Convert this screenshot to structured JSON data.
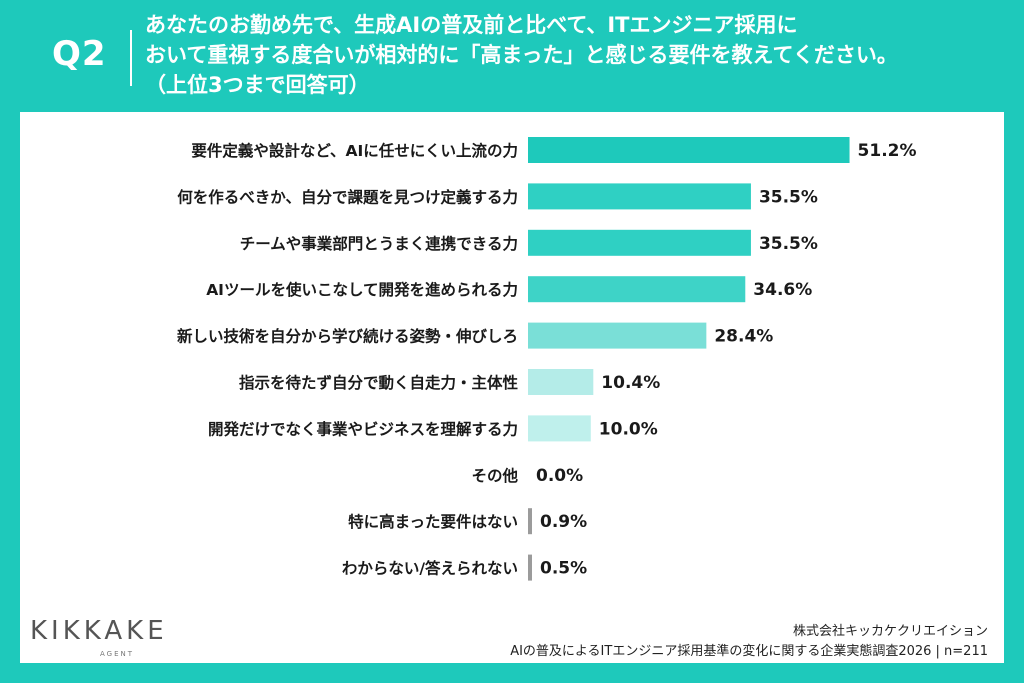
{
  "question": {
    "label": "Q2",
    "line1": "あなたのお勤め先で、生成AIの普及前と比べて、ITエンジニア採用に",
    "line2": "おいて重視する度合いが相対的に「高まった」と感じる要件を教えてください。",
    "line3": "（上位3つまで回答可）"
  },
  "chart_data": {
    "type": "bar",
    "orientation": "horizontal",
    "categories": [
      "要件定義や設計など、AIに任せにくい上流の力",
      "何を作るべきか、自分で課題を見つけ定義する力",
      "チームや事業部門とうまく連携できる力",
      "AIツールを使いこなして開発を進められる力",
      "新しい技術を自分から学び続ける姿勢・伸びしろ",
      "指示を待たず自分で動く自走力・主体性",
      "開発だけでなく事業やビジネスを理解する力",
      "その他",
      "特に高まった要件はない",
      "わからない/答えられない"
    ],
    "values": [
      51.2,
      35.5,
      35.5,
      34.6,
      28.4,
      10.4,
      10.0,
      0.0,
      0.9,
      0.5
    ],
    "value_labels": [
      "51.2%",
      "35.5%",
      "35.5%",
      "34.6%",
      "28.4%",
      "10.4%",
      "10.0%",
      "0.0%",
      "0.9%",
      "0.5%"
    ],
    "colors": [
      "#1ec9bb",
      "#2fd0c3",
      "#2fd0c3",
      "#3ed3c7",
      "#7adfd7",
      "#b4ece8",
      "#bff0ec",
      "#9b9b9b",
      "#9b9b9b",
      "#9b9b9b"
    ],
    "xlim": [
      0,
      60
    ],
    "grid": false
  },
  "footer": {
    "company": "株式会社キッカケクリエイション",
    "source": "AIの普及によるITエンジニア採用基準の変化に関する企業実態調査2026 | n=211"
  },
  "logo": {
    "word": "KIKKAKE",
    "sub": "AGENT"
  }
}
